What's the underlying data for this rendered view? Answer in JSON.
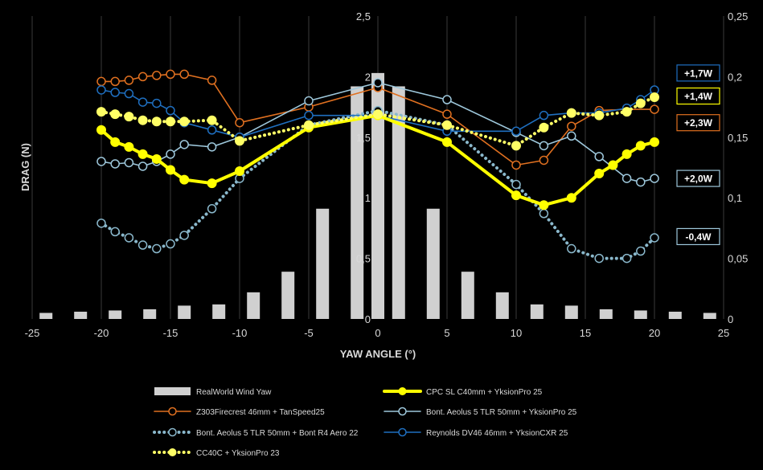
{
  "chart_data": {
    "type": "bar+line",
    "xlabel": "YAW ANGLE (°)",
    "ylabel": "DRAG (N)",
    "xlim": [
      -25,
      25
    ],
    "xticks": [
      "-25",
      "-20",
      "-15",
      "-10",
      "-5",
      "0",
      "5",
      "10",
      "15",
      "20",
      "25"
    ],
    "ylim": [
      0,
      2.5
    ],
    "yticks": [
      "0",
      "0,5",
      "1",
      "1,5",
      "2",
      "2,5"
    ],
    "y2lim": [
      0,
      0.25
    ],
    "y2ticks": [
      "0",
      "0,05",
      "0,1",
      "0,15",
      "0,2",
      "0,25"
    ],
    "grid": "vertical",
    "bars": {
      "name": "RealWorld Wind Yaw",
      "color": "#d0d0d0",
      "x": [
        -24,
        -21.5,
        -19,
        -16.5,
        -14,
        -11.5,
        -9,
        -6.5,
        -4,
        -1.5,
        0,
        1.5,
        4,
        6.5,
        9,
        11.5,
        14,
        16.5,
        19,
        21.5,
        24
      ],
      "values": [
        0.005,
        0.006,
        0.007,
        0.008,
        0.011,
        0.012,
        0.022,
        0.039,
        0.091,
        0.192,
        0.203,
        0.192,
        0.091,
        0.039,
        0.022,
        0.012,
        0.011,
        0.008,
        0.007,
        0.006,
        0.005
      ]
    },
    "series": [
      {
        "name": "Z303Firecrest 46mm + TanSpeed25",
        "color": "#e07020",
        "style": "solid",
        "marker": "open",
        "x": [
          -20,
          -19,
          -18,
          -17,
          -16,
          -15,
          -14,
          -12,
          -10,
          -5,
          0,
          5,
          10,
          12,
          14,
          16,
          18,
          20
        ],
        "y": [
          1.96,
          1.96,
          1.97,
          2.0,
          2.01,
          2.02,
          2.02,
          1.97,
          1.62,
          1.75,
          1.91,
          1.69,
          1.27,
          1.31,
          1.59,
          1.72,
          1.73,
          1.73
        ]
      },
      {
        "name": "Bont. Aeolus 5 TLR 50mm + YksionPro 25",
        "color": "#9ec8dc",
        "style": "solid",
        "marker": "open",
        "x": [
          -20,
          -19,
          -18,
          -17,
          -16,
          -15,
          -14,
          -12,
          -10,
          -5,
          0,
          5,
          10,
          12,
          14,
          16,
          18,
          19,
          20
        ],
        "y": [
          1.3,
          1.28,
          1.29,
          1.26,
          1.3,
          1.36,
          1.44,
          1.42,
          1.5,
          1.8,
          1.95,
          1.81,
          1.54,
          1.43,
          1.51,
          1.34,
          1.16,
          1.13,
          1.16
        ]
      },
      {
        "name": "Bont. Aeolus 5 TLR 50mm + Bont R4  Aero 22",
        "color": "#8ab8cc",
        "style": "dotted",
        "marker": "open",
        "x": [
          -20,
          -19,
          -18,
          -17,
          -16,
          -15,
          -14,
          -12,
          -10,
          -5,
          0,
          5,
          10,
          12,
          14,
          16,
          18,
          19,
          20
        ],
        "y": [
          0.79,
          0.72,
          0.67,
          0.61,
          0.58,
          0.62,
          0.69,
          0.91,
          1.16,
          1.6,
          1.72,
          1.6,
          1.11,
          0.87,
          0.58,
          0.5,
          0.5,
          0.56,
          0.67
        ]
      },
      {
        "name": "Reynolds DV46 46mm + YksionCXR 25",
        "color": "#1f6fc0",
        "style": "solid",
        "marker": "open",
        "x": [
          -20,
          -19,
          -18,
          -17,
          -16,
          -15,
          -14,
          -12,
          -10,
          -5,
          0,
          5,
          10,
          12,
          14,
          16,
          18,
          19,
          20
        ],
        "y": [
          1.89,
          1.87,
          1.86,
          1.79,
          1.78,
          1.72,
          1.62,
          1.56,
          1.5,
          1.68,
          1.68,
          1.55,
          1.55,
          1.68,
          1.7,
          1.7,
          1.74,
          1.81,
          1.89
        ]
      },
      {
        "name": "CPC SL C40mm + YksionPro 25",
        "color": "#ffff00",
        "style": "solid-thick",
        "marker": "filled",
        "x": [
          -20,
          -19,
          -18,
          -17,
          -16,
          -15,
          -14,
          -12,
          -10,
          -5,
          0,
          5,
          10,
          12,
          14,
          16,
          17,
          18,
          19,
          20
        ],
        "y": [
          1.56,
          1.46,
          1.42,
          1.36,
          1.32,
          1.23,
          1.15,
          1.12,
          1.22,
          1.58,
          1.68,
          1.46,
          1.02,
          0.94,
          1.0,
          1.2,
          1.27,
          1.36,
          1.43,
          1.46
        ]
      },
      {
        "name": "CC40C + YksionPro 23",
        "color": "#ffff66",
        "style": "dotted",
        "marker": "filled",
        "x": [
          -20,
          -19,
          -18,
          -17,
          -16,
          -15,
          -14,
          -12,
          -10,
          -5,
          0,
          5,
          10,
          12,
          14,
          16,
          18,
          19,
          20
        ],
        "y": [
          1.71,
          1.69,
          1.67,
          1.64,
          1.63,
          1.63,
          1.63,
          1.64,
          1.47,
          1.6,
          1.69,
          1.6,
          1.43,
          1.58,
          1.7,
          1.68,
          1.71,
          1.78,
          1.83
        ]
      }
    ],
    "annotations": [
      {
        "text": "+1,7W",
        "color": "#1f6fc0",
        "y": 2.03
      },
      {
        "text": "+1,4W",
        "color": "#ffff00",
        "y": 1.84
      },
      {
        "text": "+2,3W",
        "color": "#e07020",
        "y": 1.62
      },
      {
        "text": "+2,0W",
        "color": "#9ec8dc",
        "y": 1.16
      },
      {
        "text": "-0,4W",
        "color": "#9ec8dc",
        "y": 0.68
      }
    ]
  }
}
